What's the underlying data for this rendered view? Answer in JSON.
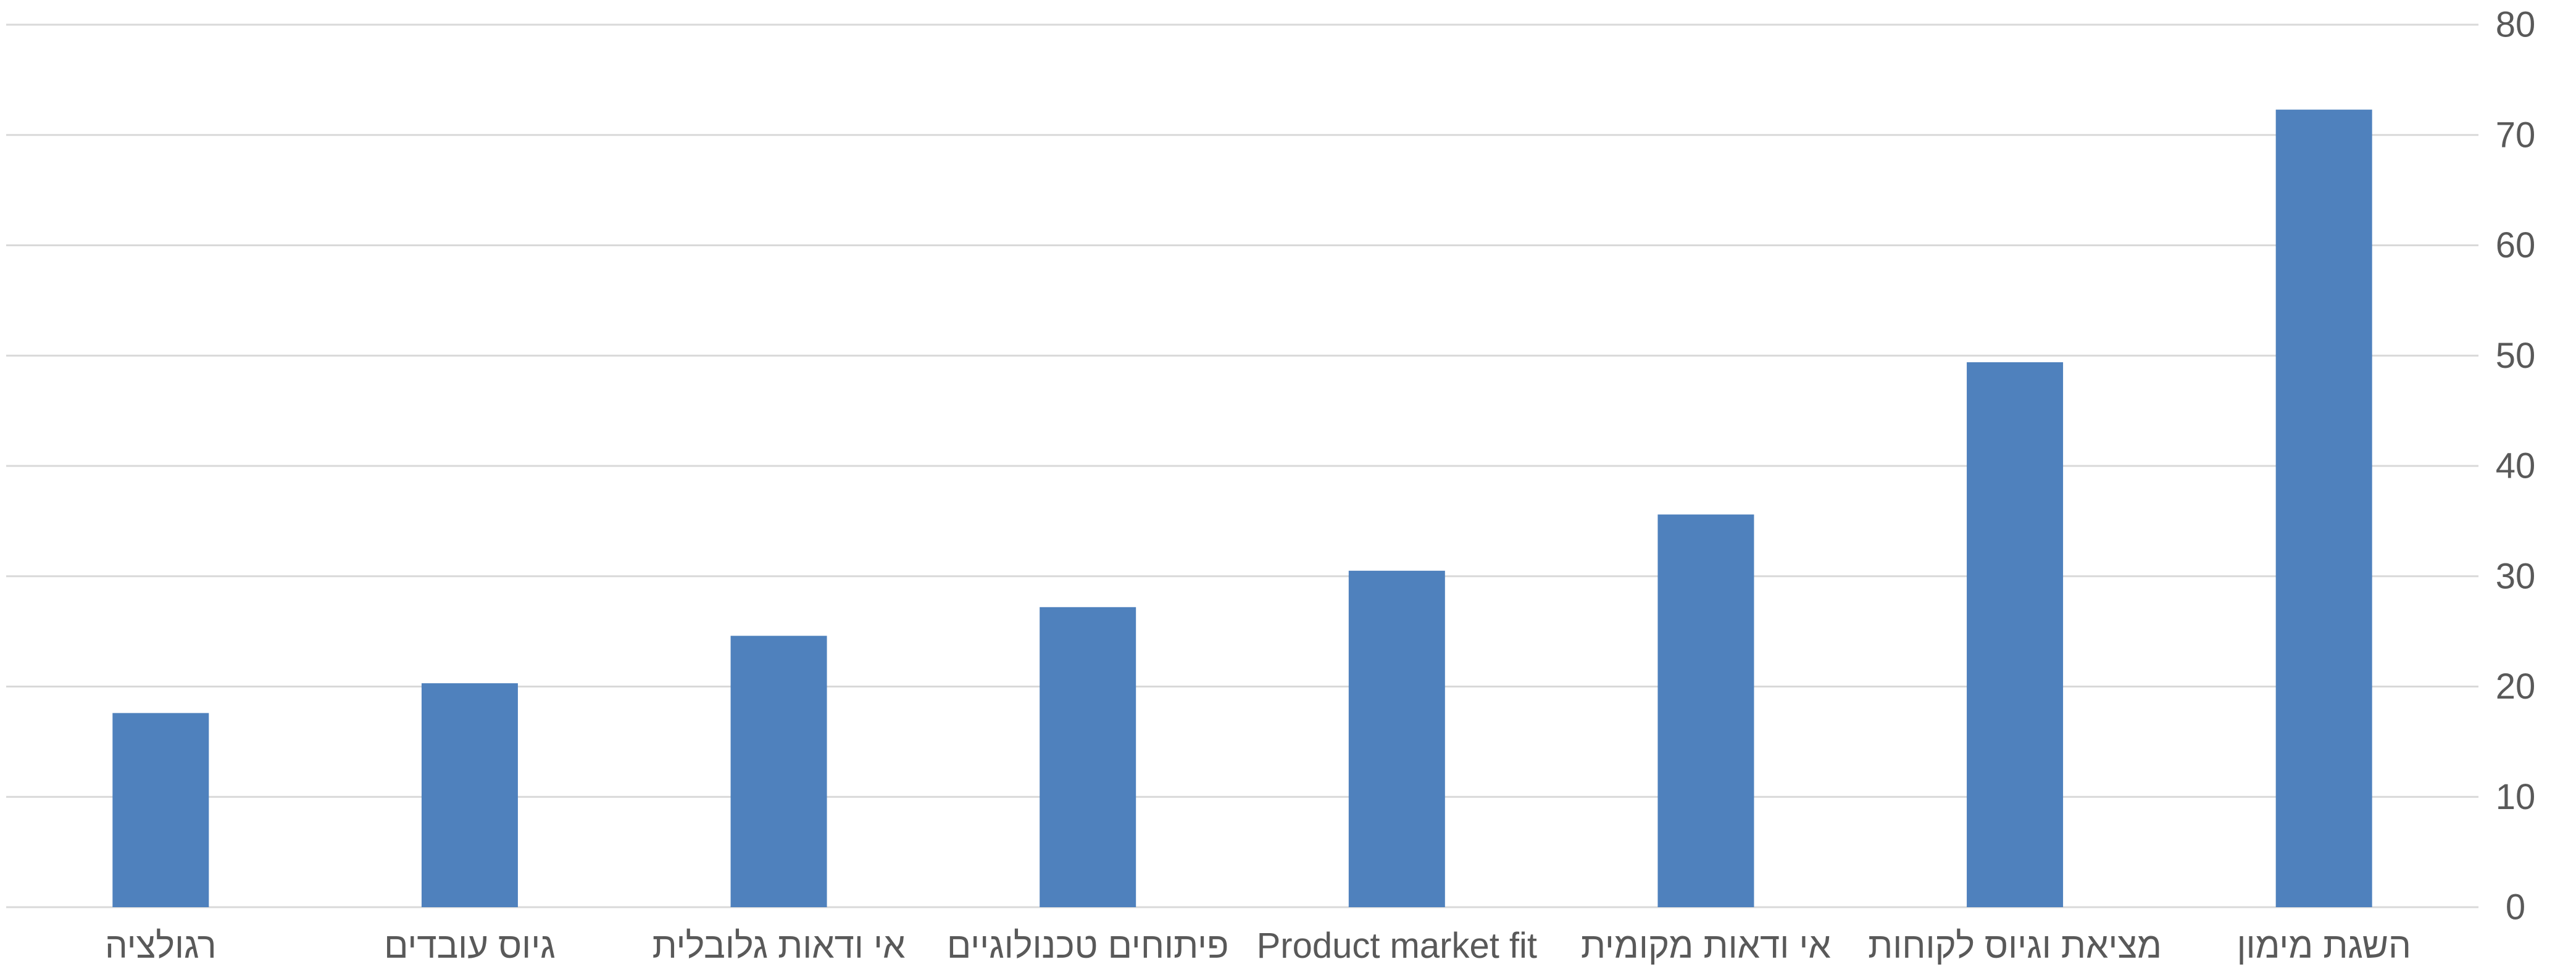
{
  "chart_data": {
    "type": "bar",
    "categories": [
      "רגולציה",
      "גיוס עובדים",
      "אי ודאות גלובלית",
      "פיתוחים טכנולוגיים",
      "Product market fit",
      "אי ודאות מקומית",
      "מציאת וגיוס לקוחות",
      "השגת מימון"
    ],
    "values": [
      17.6,
      20.3,
      24.6,
      27.2,
      30.5,
      35.6,
      49.4,
      72.3
    ],
    "ylim": [
      0,
      80
    ],
    "yticks": [
      0,
      10,
      20,
      30,
      40,
      50,
      60,
      70,
      80
    ],
    "y_axis_side": "right",
    "grid": true,
    "legend": "none",
    "title": "",
    "xlabel": "",
    "ylabel": "",
    "colors": {
      "bar": "#4f81bd",
      "grid": "#d9d9d9",
      "text": "#595959"
    }
  }
}
